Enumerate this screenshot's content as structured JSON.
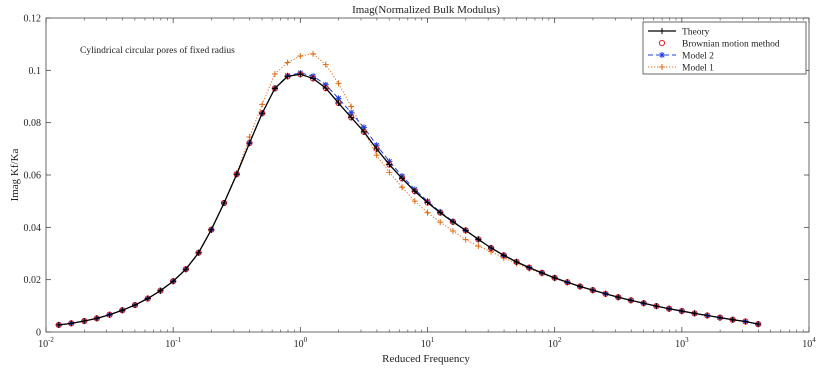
{
  "chart_data": {
    "type": "line",
    "title": "Imag(Normalized Bulk Modulus)",
    "xlabel": "Reduced Frequency",
    "ylabel": "Imag Kf/Ka",
    "annotation": "Cylindrical circular pores of fixed radius",
    "xscale": "log",
    "xlim": [
      0.01,
      10000
    ],
    "ylim": [
      0,
      0.12
    ],
    "x_ticks": [
      {
        "value": 0.01,
        "base": "10",
        "exp": "-2"
      },
      {
        "value": 0.1,
        "base": "10",
        "exp": "-1"
      },
      {
        "value": 1,
        "base": "10",
        "exp": "0"
      },
      {
        "value": 10,
        "base": "10",
        "exp": "1"
      },
      {
        "value": 100,
        "base": "10",
        "exp": "2"
      },
      {
        "value": 1000,
        "base": "10",
        "exp": "3"
      },
      {
        "value": 10000,
        "base": "10",
        "exp": "4"
      }
    ],
    "y_ticks": [
      "0",
      "0.02",
      "0.04",
      "0.06",
      "0.08",
      "0.1",
      "0.12"
    ],
    "grid": false,
    "legend_position": "top-right",
    "x": [
      0.0126,
      0.0158,
      0.02,
      0.0251,
      0.0316,
      0.0398,
      0.0501,
      0.0631,
      0.0794,
      0.1,
      0.1259,
      0.1585,
      0.1995,
      0.2512,
      0.3162,
      0.3981,
      0.5012,
      0.631,
      0.7943,
      1.0,
      1.2589,
      1.5849,
      1.9953,
      2.5119,
      3.1623,
      3.9811,
      5.0119,
      6.3096,
      7.9433,
      10.0,
      12.589,
      15.849,
      19.953,
      25.119,
      31.623,
      39.811,
      50.119,
      63.096,
      79.433,
      100.0,
      125.89,
      158.49,
      199.53,
      251.19,
      316.23,
      398.11,
      501.19,
      630.96,
      794.33,
      1000.0,
      1258.9,
      1584.9,
      1995.3,
      2511.9,
      3162.3,
      3981.1
    ],
    "series": [
      {
        "name": "Theory",
        "color": "#000000",
        "style": "solid",
        "marker": "plus",
        "values": [
          0.0027,
          0.0033,
          0.0042,
          0.0052,
          0.0066,
          0.0083,
          0.0103,
          0.0128,
          0.0158,
          0.0194,
          0.024,
          0.0303,
          0.0391,
          0.0493,
          0.0603,
          0.0722,
          0.0836,
          0.0931,
          0.0977,
          0.0985,
          0.0969,
          0.0932,
          0.0875,
          0.082,
          0.0765,
          0.07,
          0.064,
          0.0587,
          0.0538,
          0.0495,
          0.0456,
          0.0421,
          0.0388,
          0.0354,
          0.0321,
          0.0293,
          0.0268,
          0.0246,
          0.0226,
          0.0207,
          0.019,
          0.0174,
          0.016,
          0.0146,
          0.0133,
          0.0121,
          0.011,
          0.0099,
          0.0089,
          0.008,
          0.0071,
          0.0063,
          0.0055,
          0.0047,
          0.004,
          0.003
        ]
      },
      {
        "name": "Brownian motion method",
        "color": "#e8222a",
        "style": "none",
        "marker": "circle",
        "values": [
          0.0027,
          0.0033,
          0.0042,
          0.0052,
          0.0066,
          0.0083,
          0.0103,
          0.0128,
          0.0158,
          0.0194,
          0.024,
          0.0303,
          0.0391,
          0.0493,
          0.0603,
          0.0722,
          0.0836,
          0.0931,
          0.0977,
          0.0985,
          0.0969,
          0.0932,
          0.0875,
          0.082,
          0.0765,
          0.07,
          0.064,
          0.0587,
          0.0538,
          0.0495,
          0.0456,
          0.0421,
          0.0388,
          0.0354,
          0.0321,
          0.0293,
          0.0268,
          0.0246,
          0.0226,
          0.0207,
          0.019,
          0.0174,
          0.016,
          0.0146,
          0.0133,
          0.0121,
          0.011,
          0.0099,
          0.0089,
          0.008,
          0.0071,
          0.0063,
          0.0055,
          0.0047,
          0.004,
          0.003
        ]
      },
      {
        "name": "Model 2",
        "color": "#1f3fe0",
        "style": "dashed",
        "marker": "star",
        "values": [
          0.0027,
          0.0033,
          0.0042,
          0.0052,
          0.0066,
          0.0083,
          0.0103,
          0.0128,
          0.0158,
          0.0194,
          0.024,
          0.0303,
          0.0391,
          0.0493,
          0.0603,
          0.0722,
          0.0836,
          0.0931,
          0.098,
          0.099,
          0.0978,
          0.0945,
          0.0893,
          0.0838,
          0.0782,
          0.0714,
          0.0652,
          0.0596,
          0.0545,
          0.05,
          0.0459,
          0.0423,
          0.0389,
          0.0354,
          0.0321,
          0.0293,
          0.0268,
          0.0246,
          0.0226,
          0.0207,
          0.019,
          0.0174,
          0.016,
          0.0146,
          0.0133,
          0.0121,
          0.011,
          0.0099,
          0.0089,
          0.008,
          0.0071,
          0.0063,
          0.0055,
          0.0047,
          0.004,
          0.003
        ]
      },
      {
        "name": "Model 1",
        "color": "#e06a12",
        "style": "dotted",
        "marker": "plus",
        "values": [
          0.0027,
          0.0033,
          0.0042,
          0.0052,
          0.0066,
          0.0083,
          0.0103,
          0.0128,
          0.0158,
          0.0194,
          0.024,
          0.0303,
          0.0391,
          0.0493,
          0.0608,
          0.0745,
          0.087,
          0.0986,
          0.103,
          0.1055,
          0.1063,
          0.1022,
          0.095,
          0.0862,
          0.0767,
          0.0676,
          0.061,
          0.0553,
          0.05,
          0.0456,
          0.042,
          0.0386,
          0.0353,
          0.0328,
          0.0307,
          0.0283,
          0.0262,
          0.0242,
          0.0223,
          0.0205,
          0.0189,
          0.0173,
          0.0159,
          0.0146,
          0.0133,
          0.0121,
          0.011,
          0.0099,
          0.0089,
          0.008,
          0.0071,
          0.0063,
          0.0055,
          0.0047,
          0.004,
          0.003
        ]
      }
    ]
  }
}
